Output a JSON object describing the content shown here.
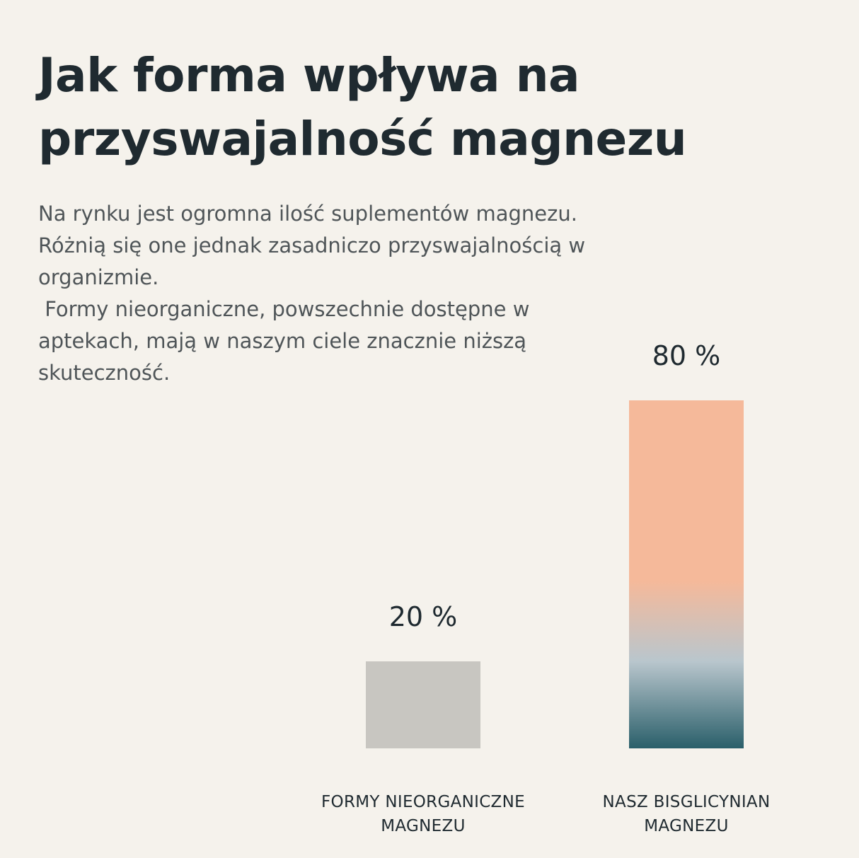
{
  "header": {
    "title_lines": [
      "Jak forma wpływa na",
      "przyswajalność magnezu"
    ]
  },
  "description": {
    "lines": [
      "Na rynku jest ogromna ilość suplementów magnezu.",
      "Różnią się one jednak zasadniczo przyswajalnością w",
      "organizmie.",
      " Formy nieorganiczne, powszechnie dostępne w",
      "aptekach, mają w naszym ciele znacznie niższą",
      "skuteczność."
    ]
  },
  "chart_data": {
    "type": "bar",
    "categories": [
      [
        "FORMY NIEORGANICZNE",
        "MAGNEZU"
      ],
      [
        "NASZ BISGLICYNIAN",
        "MAGNEZU"
      ]
    ],
    "values": [
      20,
      80
    ],
    "value_labels": [
      "20 %",
      "80 %"
    ],
    "ylim": [
      0,
      80
    ],
    "grid": false,
    "colors": {
      "bar_1": "#c8c6c1",
      "bar_2_gradient": [
        "#f5b99a",
        "#f5b99a",
        "#b9c6cd",
        "#2a5f6a"
      ]
    }
  }
}
